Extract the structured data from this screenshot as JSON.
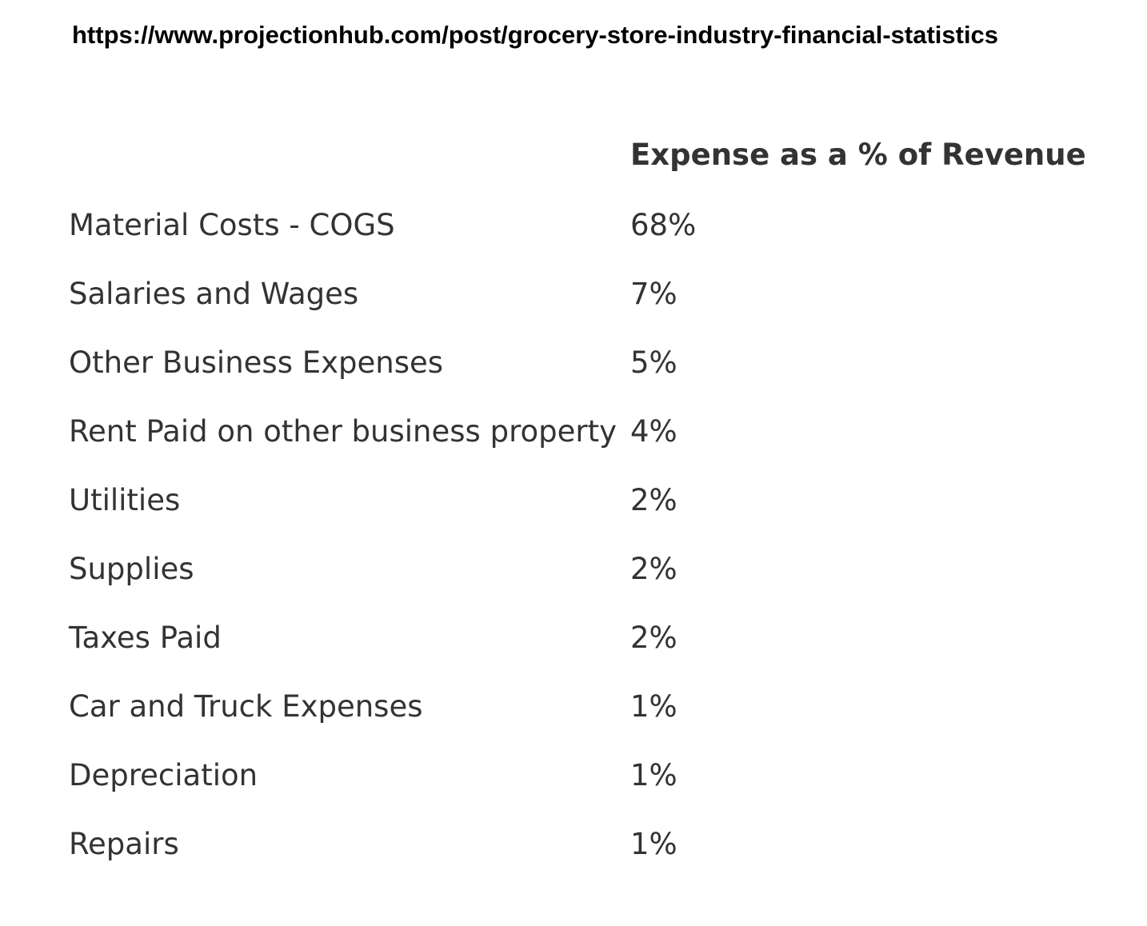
{
  "header": {
    "url": "https://www.projectionhub.com/post/grocery-store-industry-financial-statistics"
  },
  "table": {
    "column_header": "Expense as a % of Revenue",
    "rows": [
      [
        "Material Costs - COGS",
        "68%"
      ],
      [
        "Salaries and Wages",
        "7%"
      ],
      [
        "Other Business Expenses",
        "5%"
      ],
      [
        "Rent Paid on other business property",
        "4%"
      ],
      [
        "Utilities",
        "2%"
      ],
      [
        "Supplies",
        "2%"
      ],
      [
        "Taxes Paid",
        "2%"
      ],
      [
        "Car and Truck Expenses",
        "1%"
      ],
      [
        "Depreciation",
        "1%"
      ],
      [
        "Repairs",
        "1%"
      ]
    ]
  }
}
